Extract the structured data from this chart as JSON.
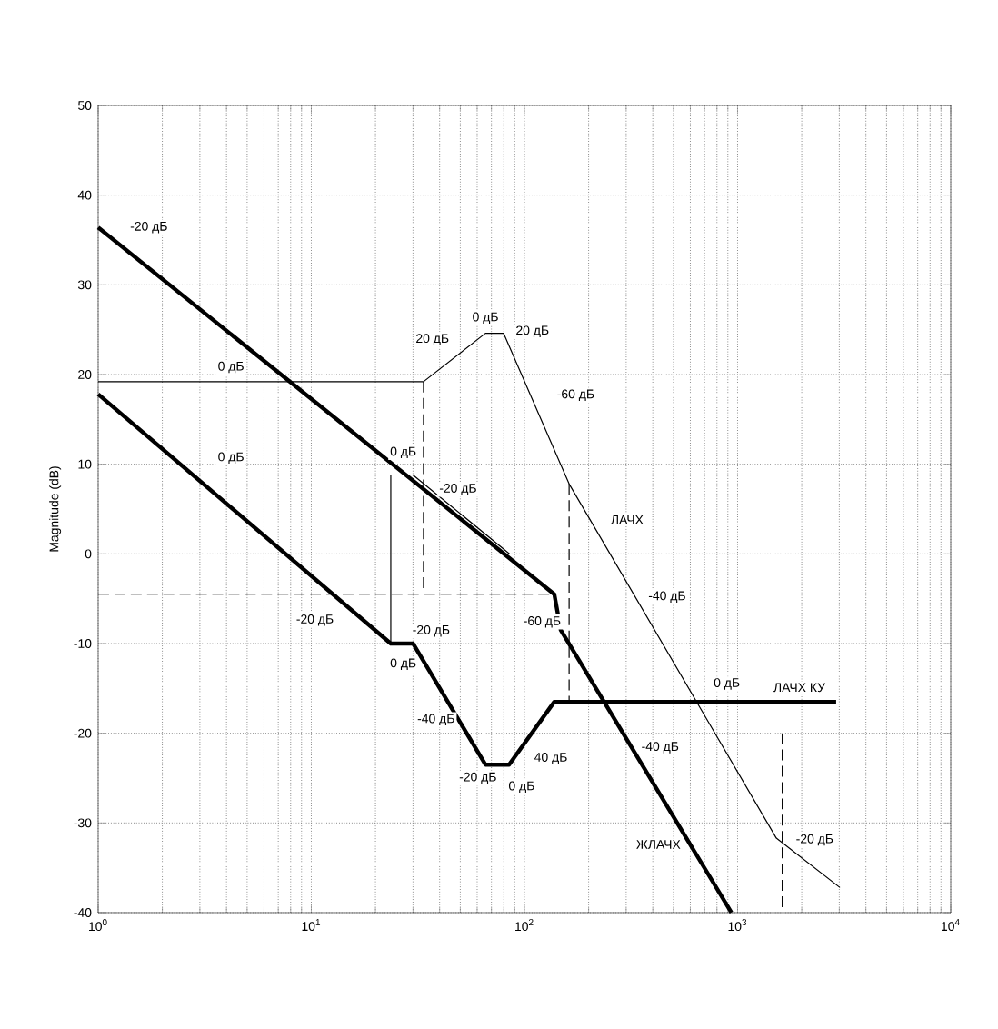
{
  "chart_data": {
    "type": "line",
    "ylabel": "Magnitude (dB)",
    "log": "x",
    "grid": true,
    "marker": "none",
    "xlim": [
      1,
      10000
    ],
    "xticks": [
      {
        "value": 1,
        "label": "10$^{0}$"
      },
      {
        "value": 10,
        "label": "10$^{1}$"
      },
      {
        "value": 100,
        "label": "10$^{2}$"
      },
      {
        "value": 1000,
        "label": "10$^{3}$"
      },
      {
        "value": 10000,
        "label": "10$^{4}$"
      }
    ],
    "ylim": [
      -40,
      50
    ],
    "yticks": [
      -40,
      -30,
      -20,
      -10,
      0,
      10,
      20,
      30,
      40,
      50
    ],
    "series": [
      {
        "color": "#000000",
        "x": [
          1,
          30,
          85
        ],
        "values": [
          8.8,
          8.8,
          0
        ]
      },
      {
        "color": "#000000",
        "x": [
          1,
          33.6,
          65.6,
          79.8,
          162,
          1520,
          3020
        ],
        "values": [
          19.2,
          19.2,
          24.6,
          24.6,
          7.8,
          -31.7,
          -37.2
        ]
      },
      {
        "color": "#000000",
        "x": [
          1,
          138,
          148,
          935
        ],
        "values": [
          36.4,
          -4.5,
          -8.5,
          -40
        ]
      },
      {
        "color": "#000000",
        "x": [
          1,
          23.6,
          30,
          65.6,
          84.7,
          138,
          2900
        ],
        "values": [
          17.8,
          -10,
          -10,
          -23.5,
          -23.5,
          -16.5,
          -16.5
        ]
      },
      {
        "color": "#000000",
        "line_style": "dashed",
        "x": [
          1,
          138
        ],
        "values": [
          -4.5,
          -4.5
        ]
      },
      {
        "color": "#000000",
        "line_style": "dashed",
        "x": [
          33.6,
          33.6
        ],
        "values": [
          19.2,
          -4.5
        ]
      },
      {
        "color": "#000000",
        "line_style": "dashed",
        "x": [
          162,
          162
        ],
        "values": [
          7.8,
          -16.5
        ]
      },
      {
        "color": "#000000",
        "line_style": "dashed",
        "x": [
          1620,
          1620
        ],
        "values": [
          -20,
          -40
        ]
      },
      {
        "color": "#000000",
        "x": [
          23.6,
          23.6
        ],
        "values": [
          8.8,
          -10
        ]
      }
    ],
    "annotations": [
      {
        "text": "-20 дБ",
        "x": 1.73,
        "y": 36.4
      },
      {
        "text": "0 дБ",
        "x": 4.2,
        "y": 20.8
      },
      {
        "text": "20 дБ",
        "x": 37,
        "y": 23.9
      },
      {
        "text": "0 дБ",
        "x": 65.6,
        "y": 26.3
      },
      {
        "text": "20 дБ",
        "x": 109,
        "y": 24.8
      },
      {
        "text": "-60 дБ",
        "x": 174,
        "y": 17.7
      },
      {
        "text": "ЛАЧХ",
        "x": 303,
        "y": 3.8
      },
      {
        "text": "0 дБ",
        "x": 4.2,
        "y": 10.7
      },
      {
        "text": "0 дБ",
        "x": 27,
        "y": 11.3
      },
      {
        "text": "-20 дБ",
        "x": 48.8,
        "y": 7.2
      },
      {
        "text": "-20 дБ",
        "x": 10.4,
        "y": -7.4
      },
      {
        "text": "-20 дБ",
        "x": 36.5,
        "y": -8.6
      },
      {
        "text": "0 дБ",
        "x": 27,
        "y": -12.3
      },
      {
        "text": "-40 дБ",
        "x": 38.5,
        "y": -18.5
      },
      {
        "text": "-20 дБ",
        "x": 60.5,
        "y": -25
      },
      {
        "text": "0 дБ",
        "x": 97,
        "y": -26
      },
      {
        "text": "40 дБ",
        "x": 133,
        "y": -22.8
      },
      {
        "text": "-60 дБ",
        "x": 121,
        "y": -7.6
      },
      {
        "text": "-40 дБ",
        "x": 467,
        "y": -4.8
      },
      {
        "text": "0 дБ",
        "x": 890,
        "y": -14.5
      },
      "ЛАЧХ КУ",
      {
        "text": "-40 дБ",
        "x": 433,
        "y": -21.6
      },
      "ЖЛАЧХ",
      {
        "text": "-20 дБ",
        "x": 2300,
        "y": -31.9
      }
    ]
  }
}
